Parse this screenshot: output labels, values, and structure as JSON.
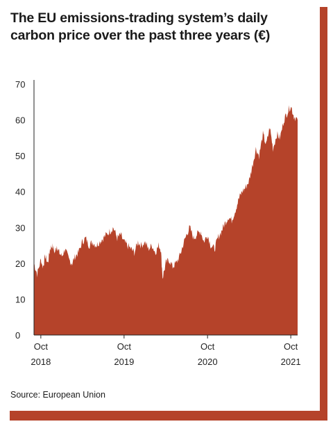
{
  "colors": {
    "frame": "#b5432a",
    "area": "#b5432a",
    "axis": "#222222",
    "background": "#ffffff"
  },
  "title_line1": "The EU emissions-trading system’s daily",
  "title_line2": "carbon price over the past three years (€)",
  "source": "Source: European Union",
  "chart_data": {
    "type": "area",
    "title": "The EU emissions-trading system’s daily carbon price over the past three years (€)",
    "ylabel": "",
    "xlabel": "",
    "ylim": [
      0,
      70
    ],
    "yticks": [
      0,
      10,
      20,
      30,
      40,
      50,
      60,
      70
    ],
    "xticks": [
      {
        "date": "2018-10",
        "label_top": "Oct",
        "label_bottom": "2018"
      },
      {
        "date": "2019-10",
        "label_top": "Oct",
        "label_bottom": "2019"
      },
      {
        "date": "2020-10",
        "label_top": "Oct",
        "label_bottom": "2020"
      },
      {
        "date": "2021-10",
        "label_top": "Oct",
        "label_bottom": "2021"
      }
    ],
    "grid": false,
    "legend": "none",
    "series": [
      {
        "x": [
          "2018-09-01",
          "2018-09-15",
          "2018-10-01",
          "2018-10-10",
          "2018-10-20",
          "2018-11-01",
          "2018-11-10",
          "2018-11-20",
          "2018-12-01",
          "2018-12-10",
          "2018-12-20",
          "2019-01-01",
          "2019-01-15",
          "2019-02-01",
          "2019-02-15",
          "2019-03-01",
          "2019-03-15",
          "2019-04-01",
          "2019-04-15",
          "2019-05-01",
          "2019-05-15",
          "2019-06-01",
          "2019-06-15",
          "2019-07-01",
          "2019-07-15",
          "2019-08-01",
          "2019-08-15",
          "2019-09-01",
          "2019-09-15",
          "2019-10-01",
          "2019-10-15",
          "2019-11-01",
          "2019-11-15",
          "2019-12-01",
          "2019-12-15",
          "2020-01-01",
          "2020-01-15",
          "2020-02-01",
          "2020-02-15",
          "2020-03-01",
          "2020-03-10",
          "2020-03-18",
          "2020-04-01",
          "2020-04-15",
          "2020-05-01",
          "2020-05-15",
          "2020-06-01",
          "2020-06-15",
          "2020-07-01",
          "2020-07-15",
          "2020-08-01",
          "2020-08-15",
          "2020-09-01",
          "2020-09-15",
          "2020-10-01",
          "2020-10-15",
          "2020-11-01",
          "2020-11-15",
          "2020-12-01",
          "2020-12-15",
          "2021-01-01",
          "2021-01-15",
          "2021-02-01",
          "2021-02-15",
          "2021-03-01",
          "2021-03-15",
          "2021-04-01",
          "2021-04-15",
          "2021-05-01",
          "2021-05-15",
          "2021-06-01",
          "2021-06-15",
          "2021-07-01",
          "2021-07-15",
          "2021-08-01",
          "2021-08-15",
          "2021-09-01",
          "2021-09-15",
          "2021-10-01",
          "2021-10-15",
          "2021-10-31"
        ],
        "values": [
          20,
          17,
          21,
          19,
          22,
          20,
          24,
          25,
          23,
          25,
          23,
          22,
          24,
          21,
          20,
          22,
          23,
          26,
          27,
          25,
          26,
          25,
          26,
          27,
          28,
          29,
          30,
          27,
          28,
          26,
          25,
          24,
          23,
          26,
          25,
          26,
          24,
          25,
          23,
          25,
          24,
          16,
          20,
          21,
          19,
          20,
          22,
          25,
          28,
          30,
          27,
          28,
          29,
          26,
          28,
          25,
          24,
          27,
          29,
          31,
          33,
          32,
          35,
          38,
          40,
          41,
          43,
          47,
          52,
          50,
          56,
          53,
          58,
          52,
          56,
          55,
          60,
          62,
          64,
          61,
          60
        ]
      }
    ]
  }
}
